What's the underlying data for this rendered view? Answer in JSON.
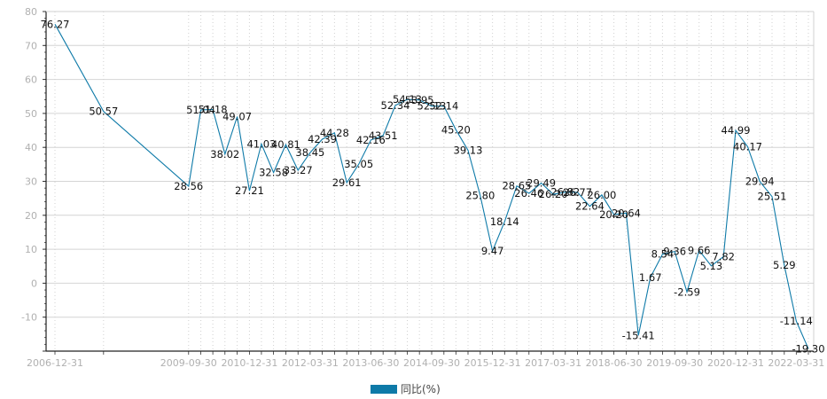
{
  "chart_data": {
    "type": "line",
    "color": "#0e7aa8",
    "ylim": [
      -20,
      80
    ],
    "y_ticks": [
      "-10",
      "0",
      "10",
      "20",
      "30",
      "40",
      "50",
      "60",
      "70",
      "80"
    ],
    "x_ticks": [
      "2006-12-31",
      "2009-09-30",
      "2010-12-31",
      "2012-03-31",
      "2013-06-30",
      "2014-09-30",
      "2015-12-31",
      "2017-03-31",
      "2018-06-30",
      "2019-09-30",
      "2020-12-31",
      "2022-03-31"
    ],
    "grid": true,
    "legend_position": "bottom-center",
    "series": [
      {
        "name": "同比(%)",
        "x": [
          "2006-12-31",
          "2007-12-31",
          "2009-09-30",
          "2009-12-31",
          "2010-03-31",
          "2010-06-30",
          "2010-09-30",
          "2010-12-31",
          "2011-03-31",
          "2011-06-30",
          "2011-09-30",
          "2011-12-31",
          "2012-03-31",
          "2012-06-30",
          "2012-09-30",
          "2012-12-31",
          "2013-03-31",
          "2013-06-30",
          "2013-09-30",
          "2013-12-31",
          "2014-03-31",
          "2014-06-30",
          "2014-09-30",
          "2014-12-31",
          "2015-03-31",
          "2015-06-30",
          "2015-09-30",
          "2015-12-31",
          "2016-03-31",
          "2016-06-30",
          "2016-09-30",
          "2016-12-31",
          "2017-03-31",
          "2017-06-30",
          "2017-09-30",
          "2017-12-31",
          "2018-03-31",
          "2018-06-30",
          "2018-09-30",
          "2018-12-31",
          "2019-03-31",
          "2019-06-30",
          "2019-09-30",
          "2019-12-31",
          "2020-03-31",
          "2020-06-30",
          "2020-09-30",
          "2020-12-31",
          "2021-03-31",
          "2021-06-30",
          "2021-09-30",
          "2021-12-31",
          "2022-03-31",
          "2022-06-30"
        ],
        "values": [
          76.27,
          50.57,
          28.56,
          51.04,
          51.18,
          38.02,
          49.07,
          27.21,
          41.03,
          32.58,
          40.81,
          33.27,
          38.45,
          42.39,
          44.28,
          29.61,
          35.05,
          42.16,
          43.51,
          52.34,
          54.13,
          53.95,
          52.13,
          52.14,
          45.2,
          39.13,
          25.8,
          9.47,
          18.14,
          28.65,
          26.46,
          29.49,
          26.2,
          26.82,
          26.77,
          22.64,
          26.0,
          20.2,
          20.64,
          -15.41,
          1.67,
          8.54,
          9.36,
          -2.59,
          9.66,
          5.13,
          7.82,
          44.99,
          40.17,
          29.94,
          25.51,
          5.29,
          -11.14,
          -19.3
        ],
        "labels": [
          "76.27",
          "50.57",
          "28.56",
          "51.04",
          "51.18",
          "38.02",
          "49.07",
          "27.21",
          "41.03",
          "32.58",
          "40.81",
          "33.27",
          "38.45",
          "42.39",
          "44.28",
          "29.61",
          "35.05",
          "42.16",
          "43.51",
          "52.34",
          "54.13",
          "53.95",
          "52.13",
          "52.14",
          "45.20",
          "39.13",
          "25.80",
          "9.47",
          "18.14",
          "28.65",
          "26.46",
          "29.49",
          "26.20",
          "26.82",
          "26.77",
          "22.64",
          "26.00",
          "20.20",
          "20.64",
          "-15.41",
          "1.67",
          "8.54",
          "9.36",
          "-2.59",
          "9.66",
          "5.13",
          "7.82",
          "44.99",
          "40.17",
          "29.94",
          "25.51",
          "5.29",
          "-11.14",
          "-19.30"
        ]
      }
    ]
  },
  "legend": {
    "label": "同比(%)"
  }
}
